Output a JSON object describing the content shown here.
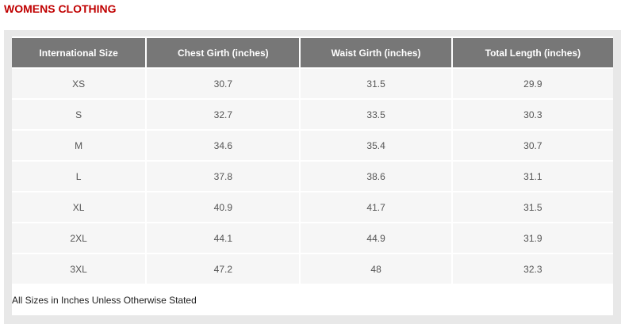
{
  "header": {
    "title": "WOMENS CLOTHING"
  },
  "table": {
    "columns": [
      "International Size",
      "Chest Girth (inches)",
      "Waist Girth (inches)",
      "Total Length (inches)"
    ],
    "rows": [
      [
        "XS",
        30.7,
        31.5,
        29.9
      ],
      [
        "S",
        32.7,
        33.5,
        30.3
      ],
      [
        "M",
        34.6,
        35.4,
        30.7
      ],
      [
        "L",
        37.8,
        38.6,
        31.1
      ],
      [
        "XL",
        40.9,
        41.7,
        31.5
      ],
      [
        "2XL",
        44.1,
        44.9,
        31.9
      ],
      [
        "3XL",
        47.2,
        48,
        32.3
      ]
    ],
    "note": "All Sizes in Inches Unless Otherwise Stated"
  }
}
